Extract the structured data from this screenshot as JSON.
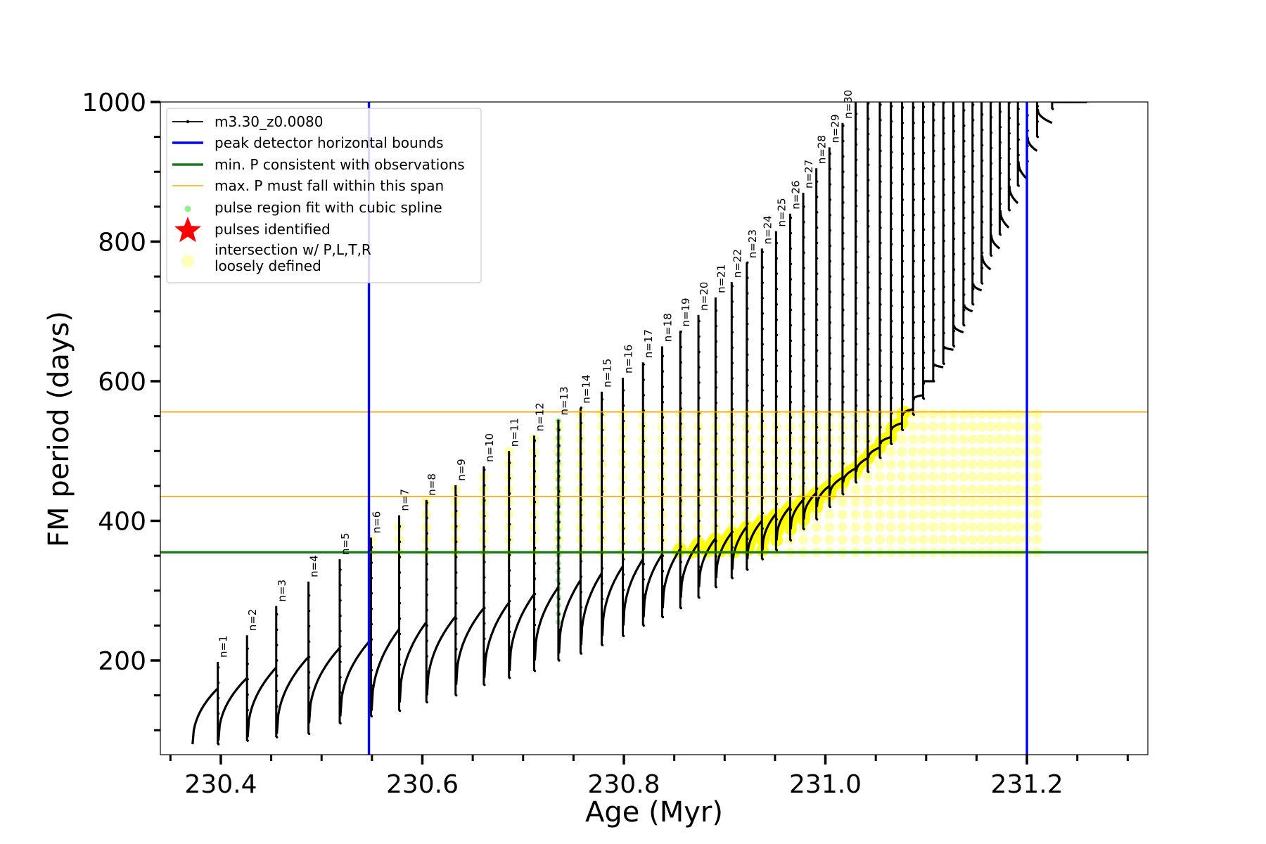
{
  "chart_data": {
    "type": "line",
    "title": "",
    "xlabel": "Age (Myr)",
    "ylabel": "FM period (days)",
    "xlim": [
      230.34,
      231.32
    ],
    "ylim": [
      65,
      1000
    ],
    "x_ticks": [
      "230.4",
      "230.6",
      "230.8",
      "231.0",
      "231.2"
    ],
    "y_ticks": [
      "200",
      "400",
      "600",
      "800",
      "1000"
    ],
    "grid": false,
    "legend_position": "upper-left",
    "legend": [
      {
        "label": "m3.30_z0.0080",
        "symbol": "line-dot",
        "color": "#000000"
      },
      {
        "label": "peak detector horizontal bounds",
        "symbol": "line",
        "color": "#0000ff"
      },
      {
        "label": "min. P consistent with observations",
        "symbol": "line",
        "color": "#1a7a1a"
      },
      {
        "label": "max. P must fall within this span",
        "symbol": "line",
        "color": "#ffa500"
      },
      {
        "label": "pulse region fit with cubic spline",
        "symbol": "dot",
        "color": "#90ee90"
      },
      {
        "label": "pulses identified",
        "symbol": "star",
        "color": "#ff0000"
      },
      {
        "label": "intersection w/ P,L,T,R",
        "label2": "loosely defined",
        "symbol": "circle",
        "color": "#ffffaa"
      }
    ],
    "reference_lines": {
      "blue_vertical_x": [
        230.547,
        231.2
      ],
      "green_horizontal_y": 355,
      "orange_horizontal_y": [
        435,
        556
      ]
    },
    "pulse_labels": [
      "n=1",
      "n=2",
      "n=3",
      "n=4",
      "n=5",
      "n=6",
      "n=7",
      "n=8",
      "n=9",
      "n=10",
      "n=11",
      "n=12",
      "n=13",
      "n=14",
      "n=15",
      "n=16",
      "n=17",
      "n=18",
      "n=19",
      "n=20",
      "n=21",
      "n=22",
      "n=23",
      "n=24",
      "n=25",
      "n=26",
      "n=27",
      "n=28",
      "n=29",
      "n=30"
    ],
    "series": [
      {
        "name": "m3.30_z0.0080",
        "pulse_ages": [
          230.397,
          230.426,
          230.455,
          230.487,
          230.518,
          230.549,
          230.577,
          230.604,
          230.633,
          230.661,
          230.686,
          230.711,
          230.735,
          230.757,
          230.778,
          230.799,
          230.819,
          230.838,
          230.856,
          230.874,
          230.891,
          230.907,
          230.922,
          230.937,
          230.951,
          230.965,
          230.978,
          230.991,
          231.004,
          231.017,
          231.03,
          231.042,
          231.054,
          231.065,
          231.076,
          231.087,
          231.097,
          231.107,
          231.117,
          231.127,
          231.137,
          231.146,
          231.155,
          231.164,
          231.173,
          231.182,
          231.191,
          231.2,
          231.21,
          231.225,
          231.24,
          231.258
        ],
        "peak_periods": [
          198,
          236,
          278,
          313,
          345,
          376,
          408,
          430,
          451,
          478,
          500,
          522,
          545,
          562,
          585,
          605,
          627,
          650,
          672,
          695,
          720,
          742,
          770,
          790,
          815,
          840,
          870,
          905,
          935,
          970,
          1000,
          1000,
          1000,
          1000,
          1000,
          1000,
          1000,
          1000,
          1000,
          1000,
          1000,
          1000,
          1000,
          1000,
          1000,
          1000,
          1000,
          1000,
          1000,
          1000,
          1000,
          1000
        ],
        "trough_periods": [
          80,
          85,
          90,
          95,
          110,
          120,
          128,
          140,
          150,
          165,
          175,
          185,
          200,
          210,
          222,
          235,
          250,
          262,
          275,
          290,
          305,
          318,
          330,
          345,
          358,
          372,
          388,
          402,
          420,
          438,
          455,
          470,
          490,
          510,
          530,
          552,
          575,
          600,
          625,
          650,
          680,
          710,
          740,
          780,
          810,
          845,
          880,
          915,
          950,
          990,
          1000,
          1000
        ],
        "prepeak_periods": [
          160,
          175,
          190,
          205,
          218,
          230,
          245,
          255,
          263,
          275,
          283,
          295,
          305,
          315,
          325,
          335,
          345,
          352,
          360,
          368,
          375,
          383,
          392,
          400,
          410,
          420,
          430,
          440,
          450,
          462,
          475,
          490,
          505,
          520,
          540,
          560,
          580,
          600,
          620,
          645,
          670,
          700,
          730,
          760,
          790,
          820,
          855,
          890,
          930,
          970,
          1000,
          1000
        ]
      }
    ]
  }
}
